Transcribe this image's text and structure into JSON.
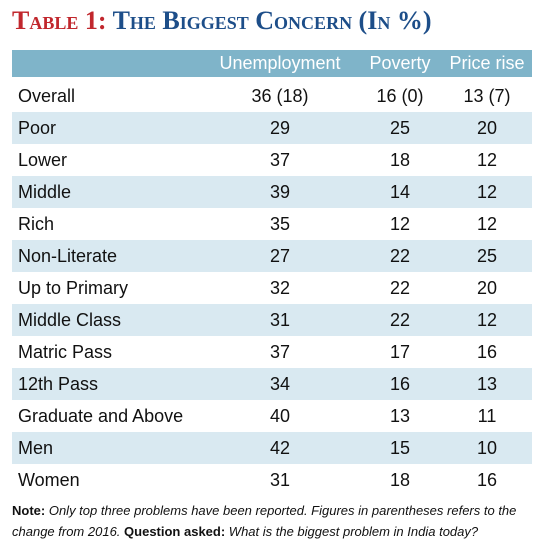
{
  "header": {
    "label": "Table 1:",
    "title": "The Biggest Concern (In %)"
  },
  "table": {
    "columns": [
      "Unemployment",
      "Poverty",
      "Price rise"
    ],
    "rows": [
      {
        "label": "Overall",
        "values": [
          "36 (18)",
          "16 (0)",
          "13 (7)"
        ]
      },
      {
        "label": "Poor",
        "values": [
          29,
          25,
          20
        ]
      },
      {
        "label": "Lower",
        "values": [
          37,
          18,
          12
        ]
      },
      {
        "label": "Middle",
        "values": [
          39,
          14,
          12
        ]
      },
      {
        "label": "Rich",
        "values": [
          35,
          12,
          12
        ]
      },
      {
        "label": "Non-Literate",
        "values": [
          27,
          22,
          25
        ]
      },
      {
        "label": "Up to Primary",
        "values": [
          32,
          22,
          20
        ]
      },
      {
        "label": "Middle Class",
        "values": [
          31,
          22,
          12
        ]
      },
      {
        "label": "Matric Pass",
        "values": [
          37,
          17,
          16
        ]
      },
      {
        "label": "12th Pass",
        "values": [
          34,
          16,
          13
        ]
      },
      {
        "label": "Graduate and Above",
        "values": [
          40,
          13,
          11
        ]
      },
      {
        "label": "Men",
        "values": [
          42,
          15,
          10
        ]
      },
      {
        "label": "Women",
        "values": [
          31,
          18,
          16
        ]
      }
    ]
  },
  "note": {
    "label": "Note:",
    "text": "Only top three problems have been reported. Figures in parentheses refers to the change from 2016.",
    "question_label": "Question asked:",
    "question": "What is the biggest problem in India today?"
  }
}
